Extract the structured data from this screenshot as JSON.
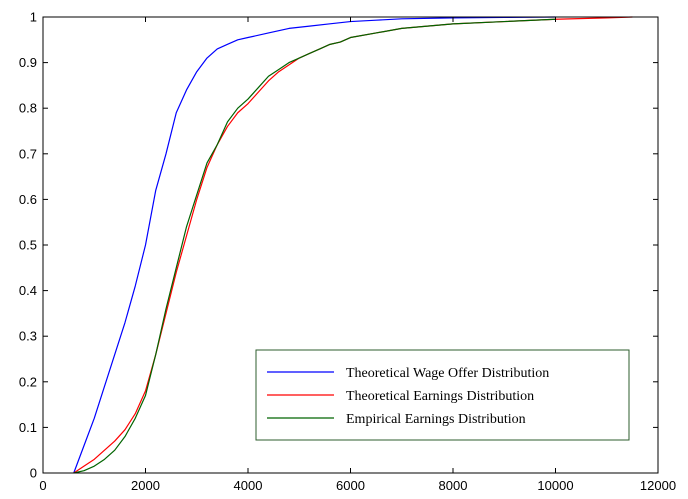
{
  "chart_data": {
    "type": "line",
    "title": "",
    "xlabel": "",
    "ylabel": "",
    "xlim": [
      0,
      12000
    ],
    "ylim": [
      0,
      1
    ],
    "x_ticks": [
      "0",
      "2000",
      "4000",
      "6000",
      "8000",
      "10000",
      "12000"
    ],
    "y_ticks": [
      "0",
      "0.1",
      "0.2",
      "0.3",
      "0.4",
      "0.5",
      "0.6",
      "0.7",
      "0.8",
      "0.9",
      "1"
    ],
    "grid": false,
    "legend_position": "bottom-right",
    "series": [
      {
        "name": "Theoretical Wage Offer Distribution",
        "color": "#0000ff",
        "x": [
          600,
          800,
          1000,
          1200,
          1400,
          1600,
          1800,
          2000,
          2200,
          2400,
          2600,
          2800,
          3000,
          3200,
          3400,
          3600,
          3800,
          4000,
          4400,
          4800,
          5200,
          5600,
          6000,
          6500,
          7000,
          8000,
          9000,
          10000
        ],
        "y": [
          0.0,
          0.06,
          0.12,
          0.19,
          0.26,
          0.33,
          0.41,
          0.5,
          0.62,
          0.7,
          0.79,
          0.84,
          0.88,
          0.91,
          0.93,
          0.94,
          0.95,
          0.955,
          0.965,
          0.975,
          0.98,
          0.985,
          0.99,
          0.993,
          0.996,
          0.998,
          0.999,
          1.0
        ]
      },
      {
        "name": "Theoretical Earnings Distribution",
        "color": "#ff0000",
        "x": [
          600,
          800,
          1000,
          1200,
          1400,
          1600,
          1800,
          2000,
          2200,
          2400,
          2600,
          2800,
          3000,
          3200,
          3400,
          3600,
          3800,
          4000,
          4200,
          4400,
          4600,
          4800,
          5000,
          5200,
          5400,
          5600,
          5800,
          6000,
          6500,
          7000,
          7500,
          8000,
          9000,
          10000,
          11000,
          11500
        ],
        "y": [
          0.0,
          0.015,
          0.03,
          0.05,
          0.07,
          0.095,
          0.13,
          0.18,
          0.26,
          0.35,
          0.44,
          0.52,
          0.6,
          0.67,
          0.72,
          0.76,
          0.79,
          0.81,
          0.835,
          0.86,
          0.88,
          0.895,
          0.91,
          0.92,
          0.93,
          0.94,
          0.945,
          0.955,
          0.965,
          0.975,
          0.98,
          0.985,
          0.99,
          0.995,
          0.998,
          1.0
        ]
      },
      {
        "name": "Empirical Earnings Distribution",
        "color": "#006400",
        "x": [
          600,
          800,
          1000,
          1200,
          1400,
          1600,
          1800,
          2000,
          2200,
          2400,
          2600,
          2800,
          3000,
          3200,
          3400,
          3600,
          3800,
          4000,
          4200,
          4400,
          4600,
          4800,
          5000,
          5200,
          5400,
          5600,
          5800,
          6000,
          6500,
          7000,
          7500,
          8000,
          9000,
          10000
        ],
        "y": [
          0.0,
          0.005,
          0.015,
          0.03,
          0.05,
          0.08,
          0.12,
          0.17,
          0.26,
          0.36,
          0.45,
          0.54,
          0.61,
          0.68,
          0.72,
          0.77,
          0.8,
          0.82,
          0.845,
          0.87,
          0.885,
          0.9,
          0.91,
          0.92,
          0.93,
          0.94,
          0.945,
          0.955,
          0.965,
          0.975,
          0.98,
          0.985,
          0.99,
          0.995
        ]
      }
    ]
  }
}
